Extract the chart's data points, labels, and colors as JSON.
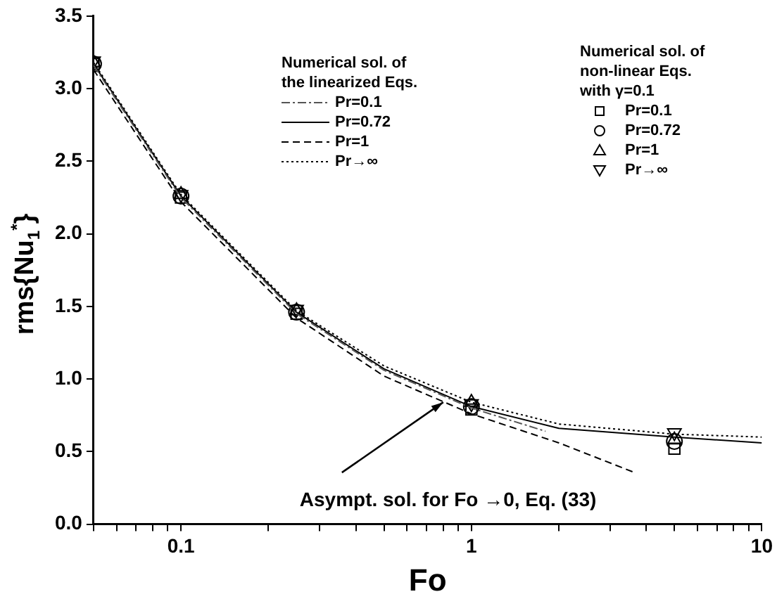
{
  "chart_data": {
    "type": "line",
    "xlabel": "Fo",
    "ylabel": "rms{Nu$_{1}$$^{*}$}",
    "log": "x",
    "xlim": [
      0.05,
      10
    ],
    "ylim": [
      0,
      3.5
    ],
    "xticks": [
      {
        "value": 0.05,
        "label": null
      },
      {
        "value": 0.06,
        "label": null
      },
      {
        "value": 0.07,
        "label": null
      },
      {
        "value": 0.08,
        "label": null
      },
      {
        "value": 0.09,
        "label": null
      },
      0.1,
      {
        "value": 0.2,
        "label": null
      },
      {
        "value": 0.3,
        "label": null
      },
      {
        "value": 0.4,
        "label": null
      },
      {
        "value": 0.5,
        "label": null
      },
      {
        "value": 0.6,
        "label": null
      },
      {
        "value": 0.7,
        "label": null
      },
      {
        "value": 0.8,
        "label": null
      },
      {
        "value": 0.9,
        "label": null
      },
      1,
      {
        "value": 2,
        "label": null
      },
      {
        "value": 3,
        "label": null
      },
      {
        "value": 4,
        "label": null
      },
      {
        "value": 5,
        "label": null
      },
      {
        "value": 6,
        "label": null
      },
      {
        "value": 7,
        "label": null
      },
      {
        "value": 8,
        "label": null
      },
      {
        "value": 9,
        "label": null
      },
      10
    ],
    "yticks": [
      {
        "value": 0,
        "label": "0.0"
      },
      {
        "value": 0.5,
        "label": "0.5"
      },
      {
        "value": 1,
        "label": "1.0"
      },
      {
        "value": 1.5,
        "label": "1.5"
      },
      {
        "value": 2,
        "label": "2.0"
      },
      {
        "value": 2.5,
        "label": "2.5"
      },
      {
        "value": 3,
        "label": "3.0"
      },
      {
        "value": 3.5,
        "label": "3.5"
      }
    ],
    "grid": false,
    "legend": "top",
    "legend_title": "Numerical sol. of the linearized Eqs.",
    "series": [
      {
        "name": "Pr=0.1",
        "line_style": "dashdot",
        "color": "#555555",
        "x": [
          0.05,
          0.1,
          0.25,
          0.5,
          1,
          1.8
        ],
        "values": [
          3.16,
          2.25,
          1.45,
          1.06,
          0.8,
          0.64
        ]
      },
      {
        "name": "Pr=0.72",
        "line_style": "solid",
        "color": "#000000",
        "x": [
          0.05,
          0.1,
          0.25,
          0.5,
          1,
          2,
          5,
          10
        ],
        "values": [
          3.17,
          2.26,
          1.46,
          1.07,
          0.81,
          0.66,
          0.6,
          0.56
        ]
      },
      {
        "name": "Pr=1",
        "line_style": "dashed",
        "color": "#000000",
        "x": [
          0.05,
          0.1,
          0.25,
          0.5,
          1,
          2,
          3.6
        ],
        "values": [
          3.13,
          2.22,
          1.42,
          1.02,
          0.76,
          0.56,
          0.36
        ]
      },
      {
        "name": "Pr→∞",
        "line_style": "dotted",
        "color": "#000000",
        "x": [
          0.05,
          0.1,
          0.25,
          0.5,
          1,
          2,
          5,
          10
        ],
        "values": [
          3.18,
          2.27,
          1.47,
          1.09,
          0.84,
          0.69,
          0.62,
          0.6
        ]
      },
      {
        "name": "Pr=0.1",
        "type": "scatter",
        "marker": "square",
        "color": "#000000",
        "x": [
          0.05,
          0.1,
          0.25,
          1,
          5
        ],
        "values": [
          3.17,
          2.25,
          1.45,
          0.79,
          0.52
        ]
      },
      {
        "name": "Pr=0.72",
        "type": "scatter",
        "marker": "circle",
        "color": "#000000",
        "x": [
          0.05,
          0.1,
          0.25,
          1,
          5
        ],
        "values": [
          3.17,
          2.26,
          1.46,
          0.81,
          0.57
        ]
      },
      {
        "name": "Pr=1",
        "type": "scatter",
        "marker": "triangle",
        "color": "#000000",
        "x": [
          0.05,
          0.1,
          0.25,
          1,
          5
        ],
        "values": [
          3.18,
          2.27,
          1.47,
          0.84,
          0.58
        ]
      },
      {
        "name": "Pr→∞",
        "type": "scatter",
        "marker": "triangle-down",
        "color": "#000000",
        "x": [
          0.05,
          0.1,
          0.25,
          1,
          5
        ],
        "values": [
          3.19,
          2.27,
          1.48,
          0.83,
          0.63
        ]
      }
    ],
    "annotations": [
      "Numerical sol. of non-linear Eqs. with γ=0.1",
      {
        "text": "Asympt. sol. for Fo →0, Eq. (33)",
        "x": 0.8,
        "y": 0.84
      }
    ]
  }
}
